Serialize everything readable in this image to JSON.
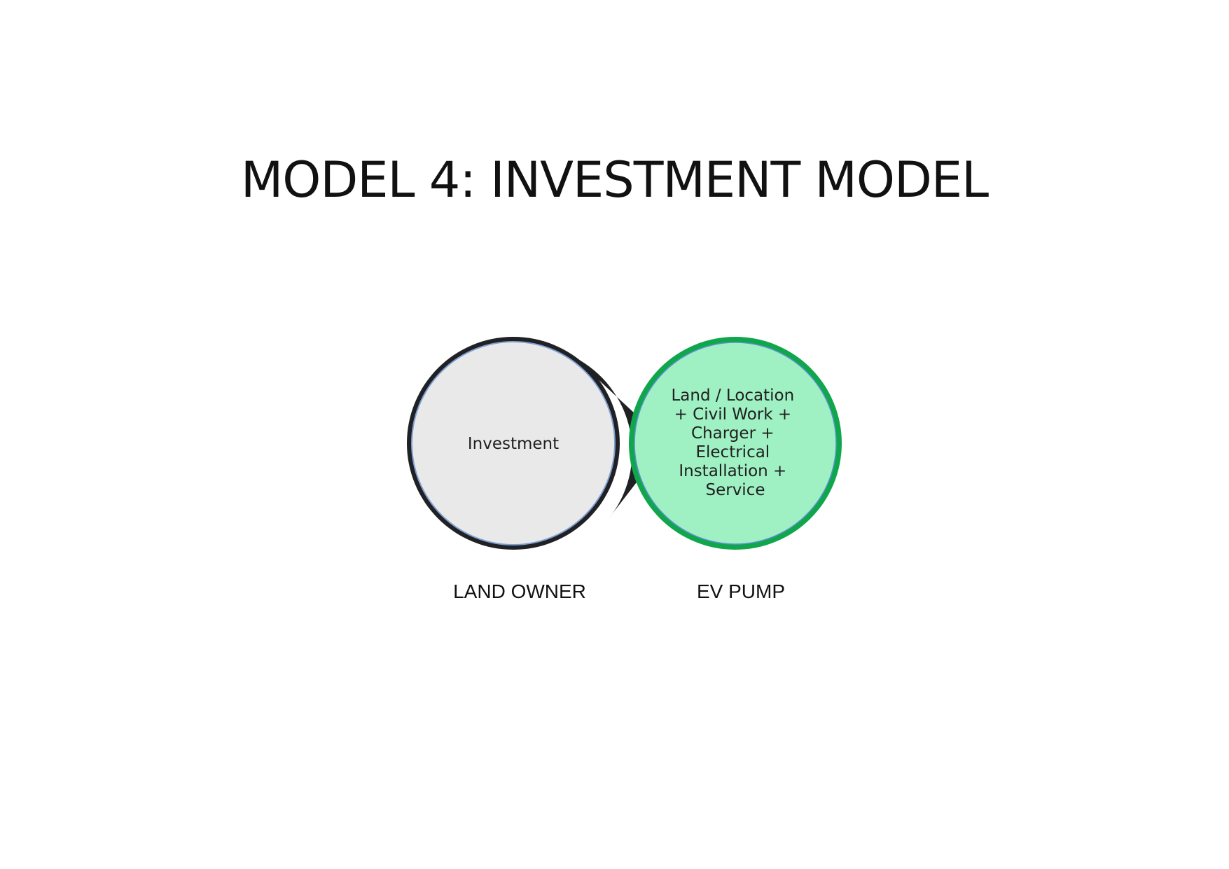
{
  "title": "MODEL 4: INVESTMENT MODEL",
  "diagram": {
    "left_node": {
      "text": "Investment",
      "caption": "LAND OWNER",
      "fill_color": "#e9e9e9",
      "border_color": "#1f2124"
    },
    "right_node": {
      "lines": [
        "Land / Location",
        "+ Civil Work +",
        "Charger +",
        "Electrical",
        "Installation +",
        "Service"
      ],
      "caption": "EV PUMP",
      "fill_color": "#9ff0c3",
      "border_color": "#10a64c"
    },
    "connector_color": "#1f2124"
  }
}
